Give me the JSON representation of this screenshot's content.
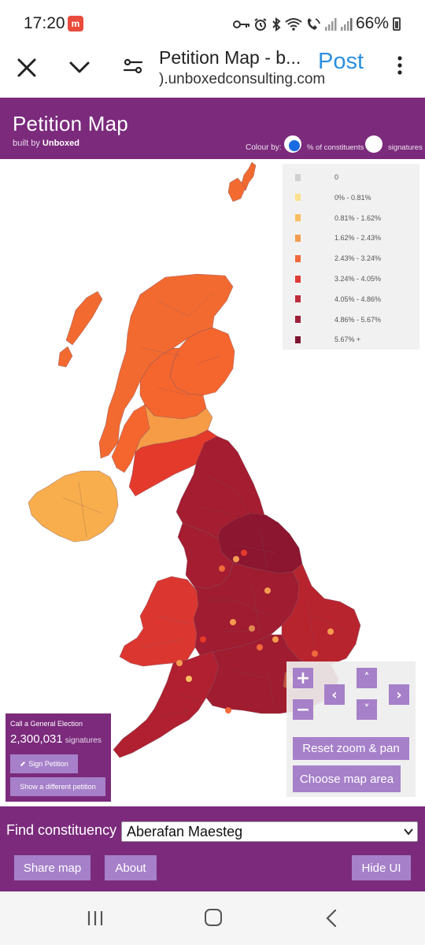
{
  "status_bar": {
    "time": "17:20",
    "notification_icon": "app-notification-icon",
    "battery": "66%",
    "icons": [
      "key-icon",
      "alarm-icon",
      "bluetooth-icon",
      "wifi-icon",
      "wifi-call-icon",
      "signal-icon",
      "signal-icon",
      "battery-icon"
    ]
  },
  "browser": {
    "title": "Petition Map - b...",
    "url": ").unboxedconsulting.com",
    "post_label": "Post"
  },
  "app": {
    "title": "Petition Map",
    "built_by_prefix": "built by ",
    "built_by_name": "Unboxed",
    "colour_by_label": "Colour by:",
    "option_percent": "% of constituents",
    "option_signatures": "signatures",
    "selected_option": "percent"
  },
  "legend": {
    "items": [
      {
        "label": "0",
        "color": "#d0d0d0"
      },
      {
        "label": "0% - 0.81%",
        "color": "#fbe08f"
      },
      {
        "label": "0.81% - 1.62%",
        "color": "#f9be62"
      },
      {
        "label": "1.62% - 2.43%",
        "color": "#f59b50"
      },
      {
        "label": "2.43% - 3.24%",
        "color": "#f06a3c"
      },
      {
        "label": "3.24% - 4.05%",
        "color": "#df3c35"
      },
      {
        "label": "4.05% - 4.86%",
        "color": "#c02c3c"
      },
      {
        "label": "4.86% - 5.67%",
        "color": "#a02038"
      },
      {
        "label": "5.67% +",
        "color": "#7c1530"
      }
    ]
  },
  "map_colors": {
    "scotland": "#f5662e",
    "scotland_north": "#f26a30",
    "central_belt": "#f69b46",
    "borders": "#e43a2c",
    "northern_ireland": "#f8ae4c",
    "north_england": "#a51d30",
    "yorkshire": "#8c1530",
    "wales": "#db3730",
    "midlands": "#a01c30",
    "east_anglia": "#b8242e",
    "south_west": "#b02030",
    "london": "#c6543c",
    "boundary": "#7a5060"
  },
  "zoom": {
    "plus": "+",
    "minus": "−",
    "up": "˄",
    "down": "˅",
    "left": "‹",
    "right": "›",
    "reset_label": "Reset zoom & pan",
    "area_label": "Choose map area"
  },
  "petition": {
    "name": "Call a General Election",
    "count": "2,300,031",
    "count_unit": "signatures",
    "sign_label": "Sign Petition",
    "different_label": "Show a different petition"
  },
  "find": {
    "label": "Find constituency",
    "selected": "Aberafan Maesteg"
  },
  "bottom_buttons": {
    "share": "Share map",
    "about": "About",
    "hide": "Hide UI"
  }
}
